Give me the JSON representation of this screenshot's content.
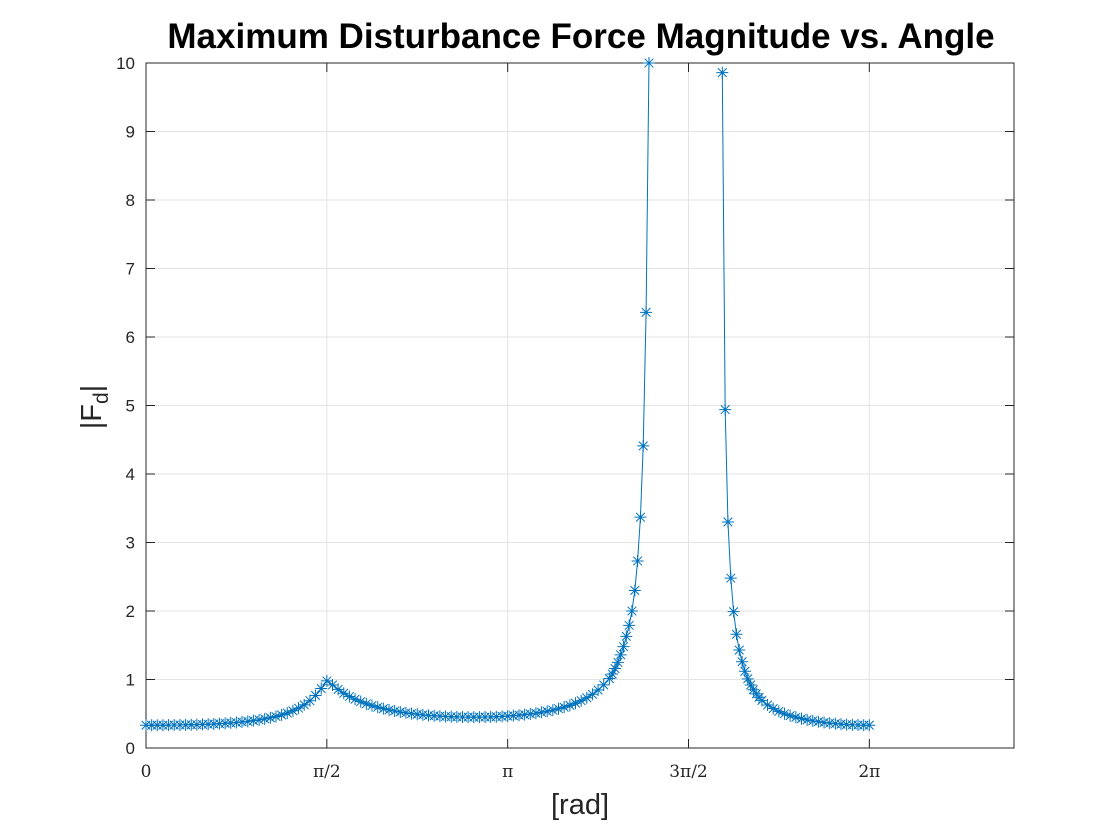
{
  "chart_data": {
    "type": "line",
    "title": "Maximum Disturbance Force Magnitude vs. Angle",
    "xlabel": "[rad]",
    "ylabel": "|F_d|",
    "ylabel_main": "|F",
    "ylabel_sub": "d",
    "ylabel_end": "|",
    "xlim": [
      0,
      7.5398
    ],
    "ylim": [
      0,
      10
    ],
    "grid": true,
    "marker": "*",
    "line_color": "#0072bd",
    "x_ticks": [
      {
        "value": 0,
        "label": "0"
      },
      {
        "value": 1.5708,
        "label": "π/2"
      },
      {
        "value": 3.1416,
        "label": "π"
      },
      {
        "value": 4.7124,
        "label": "3π/2"
      },
      {
        "value": 6.2832,
        "label": "2π"
      }
    ],
    "y_ticks": [
      {
        "value": 0,
        "label": "0"
      },
      {
        "value": 1,
        "label": "1"
      },
      {
        "value": 2,
        "label": "2"
      },
      {
        "value": 3,
        "label": "3"
      },
      {
        "value": 4,
        "label": "4"
      },
      {
        "value": 5,
        "label": "5"
      },
      {
        "value": 6,
        "label": "6"
      },
      {
        "value": 7,
        "label": "7"
      },
      {
        "value": 8,
        "label": "8"
      },
      {
        "value": 9,
        "label": "9"
      },
      {
        "value": 10,
        "label": "10"
      }
    ],
    "series": [
      {
        "segments": [
          [
            [
              0.0,
              0.333
            ],
            [
              0.049,
              0.333
            ],
            [
              0.098,
              0.333
            ],
            [
              0.147,
              0.333
            ],
            [
              0.196,
              0.334
            ],
            [
              0.245,
              0.335
            ],
            [
              0.295,
              0.336
            ],
            [
              0.344,
              0.337
            ],
            [
              0.393,
              0.339
            ],
            [
              0.442,
              0.341
            ],
            [
              0.491,
              0.344
            ],
            [
              0.54,
              0.347
            ],
            [
              0.589,
              0.351
            ],
            [
              0.638,
              0.355
            ],
            [
              0.687,
              0.36
            ],
            [
              0.736,
              0.366
            ],
            [
              0.785,
              0.372
            ],
            [
              0.834,
              0.38
            ],
            [
              0.884,
              0.389
            ],
            [
              0.933,
              0.399
            ],
            [
              0.982,
              0.411
            ],
            [
              1.031,
              0.425
            ],
            [
              1.08,
              0.441
            ],
            [
              1.129,
              0.46
            ],
            [
              1.178,
              0.483
            ],
            [
              1.227,
              0.51
            ],
            [
              1.276,
              0.543
            ],
            [
              1.325,
              0.582
            ],
            [
              1.374,
              0.63
            ],
            [
              1.424,
              0.69
            ],
            [
              1.473,
              0.767
            ],
            [
              1.522,
              0.868
            ],
            [
              1.571,
              0.98
            ],
            [
              1.62,
              0.92
            ],
            [
              1.669,
              0.855
            ],
            [
              1.718,
              0.8
            ],
            [
              1.767,
              0.752
            ],
            [
              1.816,
              0.712
            ],
            [
              1.865,
              0.677
            ],
            [
              1.914,
              0.646
            ],
            [
              1.963,
              0.619
            ],
            [
              2.013,
              0.595
            ],
            [
              2.062,
              0.574
            ],
            [
              2.111,
              0.556
            ],
            [
              2.16,
              0.54
            ],
            [
              2.209,
              0.526
            ],
            [
              2.258,
              0.513
            ],
            [
              2.307,
              0.502
            ],
            [
              2.356,
              0.492
            ],
            [
              2.405,
              0.484
            ],
            [
              2.454,
              0.476
            ],
            [
              2.503,
              0.47
            ],
            [
              2.553,
              0.465
            ],
            [
              2.602,
              0.46
            ],
            [
              2.651,
              0.457
            ],
            [
              2.7,
              0.454
            ],
            [
              2.749,
              0.452
            ],
            [
              2.798,
              0.451
            ],
            [
              2.847,
              0.45
            ],
            [
              2.896,
              0.451
            ],
            [
              2.945,
              0.452
            ],
            [
              2.994,
              0.454
            ],
            [
              3.043,
              0.457
            ],
            [
              3.093,
              0.461
            ],
            [
              3.142,
              0.466
            ],
            [
              3.191,
              0.472
            ],
            [
              3.24,
              0.479
            ],
            [
              3.289,
              0.487
            ],
            [
              3.338,
              0.497
            ],
            [
              3.387,
              0.508
            ],
            [
              3.436,
              0.521
            ],
            [
              3.485,
              0.536
            ],
            [
              3.534,
              0.553
            ],
            [
              3.583,
              0.573
            ],
            [
              3.632,
              0.596
            ],
            [
              3.682,
              0.623
            ],
            [
              3.731,
              0.654
            ],
            [
              3.78,
              0.69
            ],
            [
              3.829,
              0.733
            ],
            [
              3.878,
              0.784
            ],
            [
              3.927,
              0.846
            ],
            [
              3.976,
              0.921
            ],
            [
              4.025,
              1.014
            ],
            [
              4.05,
              1.08
            ],
            [
              4.074,
              1.16
            ],
            [
              4.099,
              1.25
            ],
            [
              4.123,
              1.36
            ],
            [
              4.148,
              1.48
            ],
            [
              4.172,
              1.63
            ],
            [
              4.197,
              1.79
            ],
            [
              4.221,
              2.0
            ],
            [
              4.246,
              2.3
            ],
            [
              4.27,
              2.73
            ],
            [
              4.295,
              3.37
            ],
            [
              4.319,
              4.41
            ],
            [
              4.344,
              6.36
            ],
            [
              4.369,
              10.0
            ]
          ],
          [
            [
              5.006,
              9.86
            ],
            [
              5.031,
              4.94
            ],
            [
              5.055,
              3.3
            ],
            [
              5.08,
              2.48
            ],
            [
              5.104,
              1.99
            ],
            [
              5.129,
              1.66
            ],
            [
              5.153,
              1.43
            ],
            [
              5.178,
              1.26
            ],
            [
              5.202,
              1.12
            ],
            [
              5.227,
              1.01
            ],
            [
              5.252,
              0.92
            ],
            [
              5.276,
              0.85
            ],
            [
              5.301,
              0.79
            ],
            [
              5.325,
              0.74
            ],
            [
              5.35,
              0.695
            ],
            [
              5.399,
              0.628
            ],
            [
              5.448,
              0.576
            ],
            [
              5.497,
              0.534
            ],
            [
              5.546,
              0.5
            ],
            [
              5.595,
              0.472
            ],
            [
              5.645,
              0.448
            ],
            [
              5.694,
              0.428
            ],
            [
              5.743,
              0.411
            ],
            [
              5.792,
              0.396
            ],
            [
              5.841,
              0.384
            ],
            [
              5.89,
              0.373
            ],
            [
              5.939,
              0.363
            ],
            [
              5.988,
              0.355
            ],
            [
              6.037,
              0.348
            ],
            [
              6.086,
              0.342
            ],
            [
              6.136,
              0.338
            ],
            [
              6.185,
              0.335
            ],
            [
              6.234,
              0.333
            ],
            [
              6.283,
              0.333
            ]
          ]
        ]
      }
    ]
  }
}
